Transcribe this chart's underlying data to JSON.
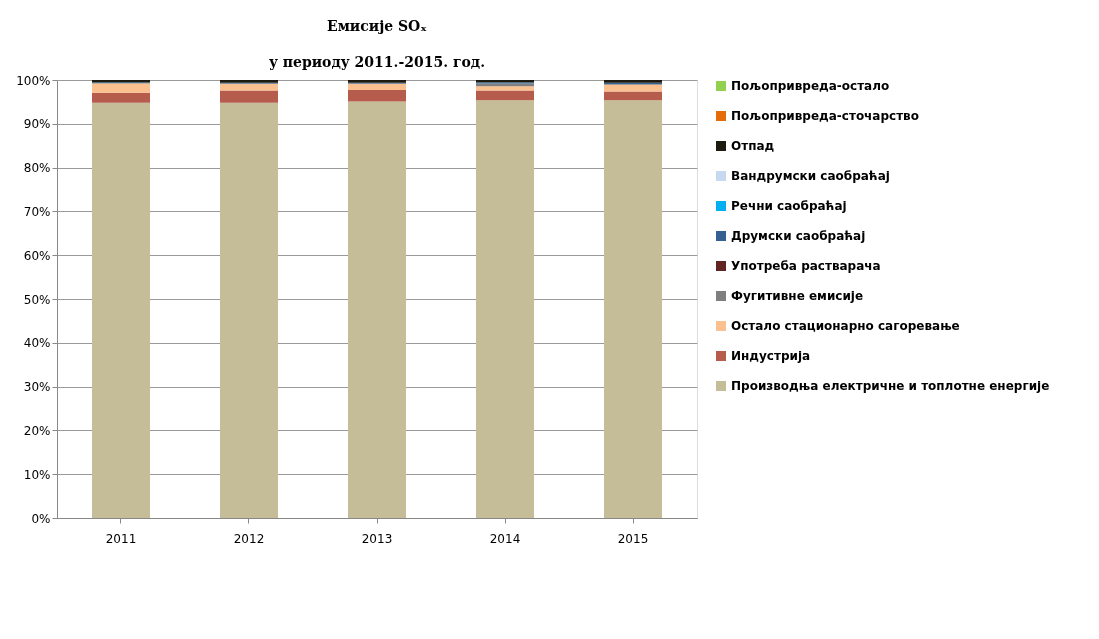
{
  "chart_data": {
    "type": "bar",
    "stacked": true,
    "title": "Емисије SOₓ",
    "subtitle": "у периоду 2011.-2015. год.",
    "categories": [
      "2011",
      "2012",
      "2013",
      "2014",
      "2015"
    ],
    "series": [
      {
        "name": "Производња електричне и топлотне енергије",
        "color": "#c4bd97",
        "values": [
          94.8,
          94.8,
          95.1,
          95.4,
          95.4
        ]
      },
      {
        "name": "Индустрија",
        "color": "#b65c4d",
        "values": [
          2.3,
          2.8,
          2.6,
          2.2,
          2.0
        ]
      },
      {
        "name": "Остало стационарно сагоревање",
        "color": "#fac08f",
        "values": [
          2.1,
          1.5,
          1.4,
          1.0,
          1.5
        ]
      },
      {
        "name": "Фугитивне емисије",
        "color": "#7f7f7f",
        "values": [
          0.1,
          0.1,
          0.1,
          0.6,
          0.2
        ]
      },
      {
        "name": "Употреба растварача",
        "color": "#632523",
        "values": [
          0.0,
          0.0,
          0.0,
          0.0,
          0.0
        ]
      },
      {
        "name": "Друмски саобраћај",
        "color": "#376092",
        "values": [
          0.2,
          0.2,
          0.2,
          0.3,
          0.3
        ]
      },
      {
        "name": "Речни саобраћај",
        "color": "#00b0f0",
        "values": [
          0.0,
          0.0,
          0.0,
          0.0,
          0.0
        ]
      },
      {
        "name": "Вандрумски саобраћај",
        "color": "#c6d9f1",
        "values": [
          0.0,
          0.0,
          0.0,
          0.0,
          0.0
        ]
      },
      {
        "name": "Отпад",
        "color": "#1d1b10",
        "values": [
          0.5,
          0.6,
          0.6,
          0.5,
          0.6
        ]
      },
      {
        "name": "Пољопривреда-сточарство",
        "color": "#e46c0a",
        "values": [
          0.0,
          0.0,
          0.0,
          0.0,
          0.0
        ]
      },
      {
        "name": "Пољопривреда-остало",
        "color": "#92d050",
        "values": [
          0.0,
          0.0,
          0.0,
          0.0,
          0.0
        ]
      }
    ],
    "ylim": [
      0,
      100
    ],
    "yticks": [
      {
        "value": 0,
        "label": "0%"
      },
      {
        "value": 10,
        "label": "10%"
      },
      {
        "value": 20,
        "label": "20%"
      },
      {
        "value": 30,
        "label": "30%"
      },
      {
        "value": 40,
        "label": "40%"
      },
      {
        "value": 50,
        "label": "50%"
      },
      {
        "value": 60,
        "label": "60%"
      },
      {
        "value": 70,
        "label": "70%"
      },
      {
        "value": 80,
        "label": "80%"
      },
      {
        "value": 90,
        "label": "90%"
      },
      {
        "value": 100,
        "label": "100%"
      }
    ],
    "grid": "y",
    "legend": "right"
  }
}
